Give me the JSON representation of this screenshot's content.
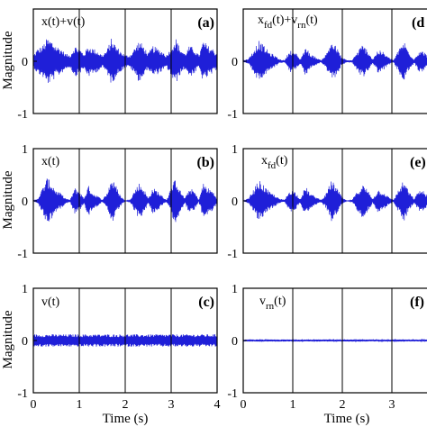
{
  "figure": {
    "ylabel": "Magnitude",
    "xlabel": "Time (s)",
    "xticks": [
      "0",
      "1",
      "2",
      "3",
      "4"
    ],
    "right_xticks_visible": [
      "0",
      "1",
      "2",
      "3"
    ],
    "yticks": [
      "-1",
      "0",
      "1"
    ],
    "panel_letters": [
      "(a)",
      "(b)",
      "(c)",
      "(d)",
      "(e)",
      "(f)"
    ],
    "signal_color": "#1f1fd8"
  },
  "chart_data": [
    {
      "type": "line",
      "panel": "(a)",
      "legend_label": "x(t)+v(t)",
      "xlim": [
        0,
        4
      ],
      "ylim": [
        -1,
        1
      ],
      "grid_x": [
        1,
        2,
        3
      ],
      "envelope": {
        "x": [
          0.0,
          0.1,
          0.2,
          0.3,
          0.4,
          0.5,
          0.6,
          0.7,
          0.8,
          0.9,
          1.0,
          1.1,
          1.2,
          1.3,
          1.4,
          1.5,
          1.6,
          1.7,
          1.8,
          1.9,
          2.0,
          2.1,
          2.2,
          2.3,
          2.4,
          2.5,
          2.6,
          2.7,
          2.8,
          2.9,
          3.0,
          3.1,
          3.2,
          3.3,
          3.4,
          3.5,
          3.6,
          3.7,
          3.8,
          3.9,
          4.0
        ],
        "peak": [
          0.12,
          0.25,
          0.3,
          0.45,
          0.4,
          0.3,
          0.25,
          0.15,
          0.12,
          0.3,
          0.25,
          0.15,
          0.3,
          0.25,
          0.2,
          0.12,
          0.22,
          0.45,
          0.3,
          0.2,
          0.12,
          0.12,
          0.25,
          0.4,
          0.3,
          0.15,
          0.3,
          0.25,
          0.2,
          0.12,
          0.3,
          0.45,
          0.25,
          0.15,
          0.3,
          0.25,
          0.12,
          0.4,
          0.3,
          0.25,
          0.15
        ]
      }
    },
    {
      "type": "line",
      "panel": "(b)",
      "legend_label": "x(t)",
      "xlim": [
        0,
        4
      ],
      "ylim": [
        -1,
        1
      ],
      "grid_x": [
        1,
        2,
        3
      ],
      "envelope": {
        "x": [
          0.0,
          0.1,
          0.2,
          0.3,
          0.4,
          0.5,
          0.6,
          0.7,
          0.8,
          0.9,
          1.0,
          1.1,
          1.2,
          1.3,
          1.4,
          1.5,
          1.6,
          1.7,
          1.8,
          1.9,
          2.0,
          2.1,
          2.2,
          2.3,
          2.4,
          2.5,
          2.6,
          2.7,
          2.8,
          2.9,
          3.0,
          3.1,
          3.2,
          3.3,
          3.4,
          3.5,
          3.6,
          3.7,
          3.8,
          3.9,
          4.0
        ],
        "peak": [
          0.0,
          0.05,
          0.25,
          0.45,
          0.35,
          0.2,
          0.15,
          0.05,
          0.02,
          0.25,
          0.2,
          0.05,
          0.3,
          0.15,
          0.1,
          0.02,
          0.15,
          0.45,
          0.3,
          0.1,
          0.0,
          0.02,
          0.2,
          0.35,
          0.25,
          0.05,
          0.25,
          0.2,
          0.1,
          0.02,
          0.25,
          0.45,
          0.2,
          0.05,
          0.25,
          0.2,
          0.02,
          0.35,
          0.25,
          0.2,
          0.05
        ]
      }
    },
    {
      "type": "line",
      "panel": "(c)",
      "legend_label": "v(t)",
      "xlim": [
        0,
        4
      ],
      "ylim": [
        -1,
        1
      ],
      "grid_x": [
        1,
        2,
        3
      ],
      "envelope": {
        "x": [
          0,
          4
        ],
        "peak": [
          0.12,
          0.12
        ]
      }
    },
    {
      "type": "line",
      "panel": "(d)",
      "legend_label": "x_fd(t)+v_rn(t)",
      "xlim": [
        0,
        4
      ],
      "ylim": [
        -1,
        1
      ],
      "grid_x": [
        1,
        2,
        3
      ],
      "envelope": {
        "x": [
          0.0,
          0.1,
          0.2,
          0.3,
          0.4,
          0.5,
          0.6,
          0.7,
          0.8,
          0.9,
          1.0,
          1.1,
          1.2,
          1.3,
          1.4,
          1.5,
          1.6,
          1.7,
          1.8,
          1.9,
          2.0,
          2.1,
          2.2,
          2.3,
          2.4,
          2.5,
          2.6,
          2.7,
          2.8,
          2.9,
          3.0,
          3.1,
          3.2,
          3.3,
          3.4,
          3.5,
          3.6,
          3.7,
          3.8,
          3.9,
          4.0
        ],
        "peak": [
          0.02,
          0.05,
          0.22,
          0.4,
          0.3,
          0.18,
          0.12,
          0.04,
          0.02,
          0.22,
          0.18,
          0.04,
          0.28,
          0.14,
          0.08,
          0.02,
          0.14,
          0.4,
          0.28,
          0.08,
          0.02,
          0.02,
          0.18,
          0.32,
          0.22,
          0.04,
          0.22,
          0.18,
          0.08,
          0.02,
          0.22,
          0.4,
          0.18,
          0.04,
          0.22,
          0.18,
          0.02,
          0.32,
          0.22,
          0.18,
          0.04
        ]
      }
    },
    {
      "type": "line",
      "panel": "(e)",
      "legend_label": "x_fd(t)",
      "xlim": [
        0,
        4
      ],
      "ylim": [
        -1,
        1
      ],
      "grid_x": [
        1,
        2,
        3
      ],
      "envelope": {
        "x": [
          0.0,
          0.1,
          0.2,
          0.3,
          0.4,
          0.5,
          0.6,
          0.7,
          0.8,
          0.9,
          1.0,
          1.1,
          1.2,
          1.3,
          1.4,
          1.5,
          1.6,
          1.7,
          1.8,
          1.9,
          2.0,
          2.1,
          2.2,
          2.3,
          2.4,
          2.5,
          2.6,
          2.7,
          2.8,
          2.9,
          3.0,
          3.1,
          3.2,
          3.3,
          3.4,
          3.5,
          3.6,
          3.7,
          3.8,
          3.9,
          4.0
        ],
        "peak": [
          0.0,
          0.05,
          0.22,
          0.4,
          0.3,
          0.18,
          0.12,
          0.04,
          0.02,
          0.22,
          0.18,
          0.04,
          0.28,
          0.14,
          0.08,
          0.02,
          0.14,
          0.4,
          0.28,
          0.08,
          0.0,
          0.02,
          0.18,
          0.32,
          0.22,
          0.04,
          0.22,
          0.18,
          0.08,
          0.02,
          0.22,
          0.4,
          0.18,
          0.04,
          0.22,
          0.18,
          0.02,
          0.32,
          0.22,
          0.18,
          0.04
        ]
      }
    },
    {
      "type": "line",
      "panel": "(f)",
      "legend_label": "v_rn(t)",
      "xlim": [
        0,
        4
      ],
      "ylim": [
        -1,
        1
      ],
      "grid_x": [
        1,
        2,
        3
      ],
      "envelope": {
        "x": [
          0,
          4
        ],
        "peak": [
          0.02,
          0.02
        ]
      }
    }
  ]
}
